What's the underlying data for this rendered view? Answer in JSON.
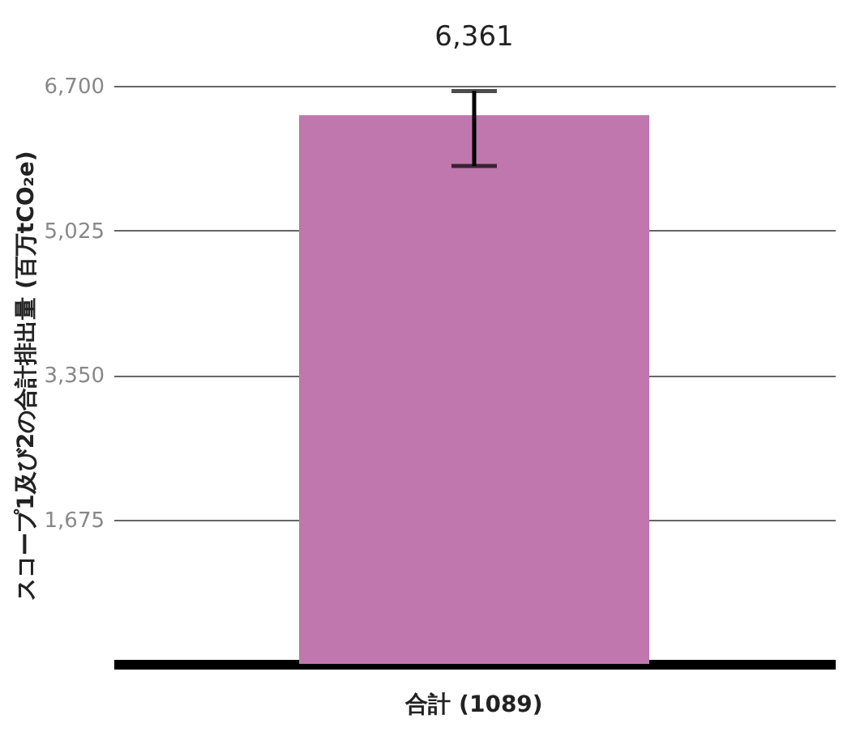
{
  "chart_data": {
    "type": "bar",
    "ylabel": "スコープ1及び2の合計排出量 (百万tCO₂e)",
    "categories": [
      "合計 (1089)"
    ],
    "values": [
      6361
    ],
    "color": "#bf77ad",
    "errors": [
      [
        5770,
        6640
      ]
    ],
    "value_labels": [
      "6,361"
    ],
    "ylim": [
      0,
      6700
    ],
    "yticks": [
      {
        "value": 1675,
        "label": "1,675"
      },
      {
        "value": 3350,
        "label": "3,350"
      },
      {
        "value": 5025,
        "label": "5,025"
      },
      {
        "value": 6700,
        "label": "6,700"
      }
    ],
    "grid": "y"
  }
}
